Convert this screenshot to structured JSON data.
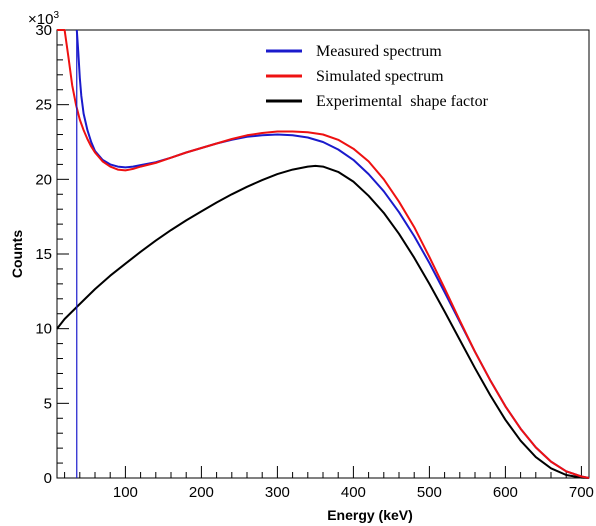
{
  "chart_data": {
    "type": "line",
    "title": "",
    "xlabel": "Energy (keV)",
    "ylabel": "Counts",
    "y_multiplier_base": "×10",
    "y_multiplier_exp": "3",
    "xlim": [
      10,
      710
    ],
    "ylim": [
      0,
      30000
    ],
    "x_ticks": [
      100,
      200,
      300,
      400,
      500,
      600,
      700
    ],
    "x_tick_labels": [
      "100",
      "200",
      "300",
      "400",
      "500",
      "600",
      "700"
    ],
    "y_ticks": [
      0,
      5000,
      10000,
      15000,
      20000,
      25000,
      30000
    ],
    "y_tick_labels": [
      "0",
      "5",
      "10",
      "15",
      "20",
      "25",
      "30"
    ],
    "grid": false,
    "legend_position": "top-right",
    "series": [
      {
        "name": "Measured spectrum",
        "color": "#1a1acc",
        "x": [
          36,
          38,
          40,
          42,
          45,
          50,
          55,
          60,
          70,
          80,
          90,
          100,
          110,
          120,
          140,
          160,
          180,
          200,
          220,
          240,
          260,
          280,
          300,
          320,
          340,
          360,
          380,
          400,
          420,
          440,
          460,
          480,
          500,
          520,
          540,
          560,
          580,
          600,
          620,
          640,
          660,
          680,
          700,
          710
        ],
        "values": [
          30000,
          28500,
          26800,
          25600,
          24400,
          23300,
          22500,
          21900,
          21300,
          21000,
          20850,
          20800,
          20850,
          20950,
          21150,
          21450,
          21800,
          22100,
          22400,
          22650,
          22850,
          22950,
          23000,
          22950,
          22800,
          22500,
          22000,
          21300,
          20350,
          19200,
          17800,
          16200,
          14400,
          12450,
          10450,
          8450,
          6550,
          4800,
          3300,
          2050,
          1100,
          450,
          100,
          0
        ]
      },
      {
        "name": "Simulated spectrum",
        "color": "#ee1111",
        "x": [
          10,
          20,
          25,
          30,
          35,
          40,
          45,
          50,
          55,
          60,
          70,
          80,
          90,
          100,
          110,
          120,
          140,
          160,
          180,
          200,
          220,
          240,
          260,
          280,
          300,
          320,
          340,
          360,
          380,
          400,
          420,
          440,
          460,
          480,
          500,
          520,
          540,
          560,
          580,
          600,
          620,
          640,
          660,
          680,
          700,
          710
        ],
        "values": [
          30000,
          30000,
          28200,
          26300,
          25000,
          24000,
          23300,
          22700,
          22200,
          21800,
          21200,
          20850,
          20650,
          20600,
          20700,
          20850,
          21100,
          21450,
          21800,
          22100,
          22400,
          22700,
          22950,
          23100,
          23200,
          23200,
          23150,
          23000,
          22650,
          22050,
          21200,
          20000,
          18500,
          16800,
          14800,
          12700,
          10550,
          8450,
          6550,
          4800,
          3300,
          2050,
          1100,
          450,
          100,
          0
        ]
      },
      {
        "name": "Experimental  shape factor",
        "color": "#000000",
        "x": [
          10,
          20,
          40,
          60,
          80,
          100,
          120,
          140,
          160,
          180,
          200,
          220,
          240,
          260,
          280,
          300,
          320,
          340,
          350,
          360,
          380,
          400,
          420,
          440,
          460,
          480,
          500,
          520,
          540,
          560,
          580,
          600,
          620,
          640,
          660,
          680,
          700,
          710
        ],
        "values": [
          10000,
          10650,
          11650,
          12650,
          13550,
          14350,
          15150,
          15900,
          16600,
          17250,
          17850,
          18450,
          19000,
          19500,
          19950,
          20350,
          20650,
          20850,
          20900,
          20850,
          20500,
          19850,
          18900,
          17750,
          16350,
          14750,
          13000,
          11150,
          9250,
          7350,
          5550,
          3900,
          2500,
          1400,
          650,
          200,
          30,
          0
        ]
      }
    ]
  }
}
